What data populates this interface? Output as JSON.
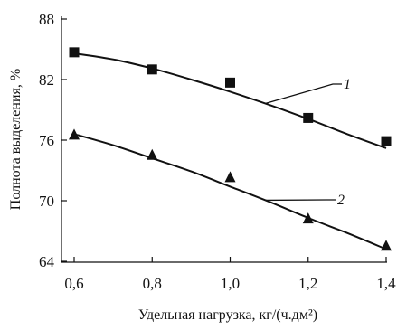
{
  "chart_data": {
    "type": "scatter",
    "title": "",
    "xlabel": "Удельная нагрузка, кг/(ч.дм²)",
    "ylabel": "Полнота выделения, %",
    "xlim": [
      0.6,
      1.4
    ],
    "ylim": [
      64,
      88
    ],
    "x_ticks": [
      "0,6",
      "0,8",
      "1,0",
      "1,2",
      "1,4"
    ],
    "x_tick_values": [
      0.6,
      0.8,
      1.0,
      1.2,
      1.4
    ],
    "y_ticks": [
      "64",
      "70",
      "76",
      "82",
      "88"
    ],
    "y_tick_values": [
      64,
      70,
      76,
      82,
      88
    ],
    "grid": false,
    "legend": "none",
    "series": [
      {
        "label": "1",
        "marker": "square",
        "x": [
          0.6,
          0.8,
          1.0,
          1.2,
          1.4
        ],
        "y": [
          84.7,
          83.0,
          81.7,
          78.2,
          75.9
        ],
        "fit_x": [
          0.6,
          0.7,
          0.8,
          0.9,
          1.0,
          1.1,
          1.2,
          1.3,
          1.4
        ],
        "fit_y": [
          84.6,
          84.0,
          83.1,
          82.0,
          80.8,
          79.5,
          78.1,
          76.6,
          75.2
        ]
      },
      {
        "label": "2",
        "marker": "triangle",
        "x": [
          0.6,
          0.8,
          1.0,
          1.2,
          1.4
        ],
        "y": [
          76.5,
          74.5,
          72.3,
          68.2,
          65.5
        ],
        "fit_x": [
          0.6,
          0.7,
          0.8,
          0.9,
          1.0,
          1.1,
          1.2,
          1.3,
          1.4
        ],
        "fit_y": [
          76.6,
          75.5,
          74.2,
          72.9,
          71.4,
          69.9,
          68.3,
          66.8,
          65.2
        ]
      }
    ]
  }
}
